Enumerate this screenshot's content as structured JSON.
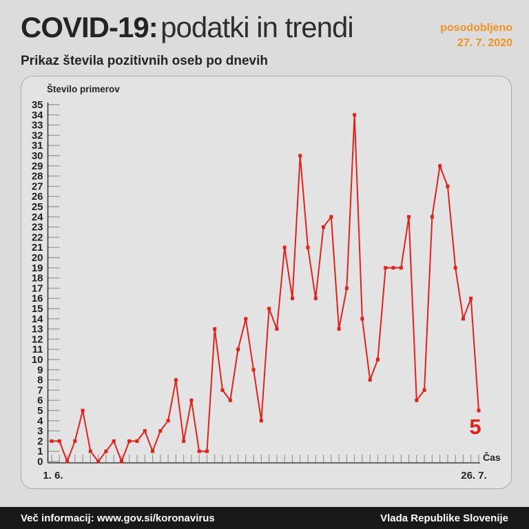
{
  "page": {
    "background": "#dcdcdc"
  },
  "header": {
    "title_bold": "COVID-19:",
    "title_regular": "podatki in trendi",
    "updated_label": "posodobljeno",
    "updated_date": "27. 7. 2020",
    "accent_color": "#f0931f",
    "subtitle": "Prikaz števila pozitivnih oseb po dnevih"
  },
  "chart_data": {
    "type": "line",
    "title": "Prikaz števila pozitivnih oseb po dnevih",
    "ylabel": "Število primerov",
    "xlabel": "Čas",
    "x_first_tick_label": "1. 6.",
    "x_last_tick_label": "26. 7.",
    "ylim": [
      0,
      35
    ],
    "y_tick_step": 1,
    "n_points": 56,
    "grid": "axis-ticks-only",
    "legend_position": "none",
    "line_color": "#e32118",
    "marker": "square",
    "last_point_label": "5",
    "series": [
      {
        "name": "Število pozitivnih oseb po dnevih",
        "values": [
          2,
          2,
          0,
          2,
          5,
          1,
          0,
          1,
          2,
          0,
          2,
          2,
          3,
          1,
          3,
          4,
          8,
          2,
          6,
          1,
          1,
          13,
          7,
          6,
          11,
          14,
          9,
          4,
          15,
          13,
          21,
          16,
          30,
          21,
          16,
          23,
          24,
          13,
          17,
          34,
          14,
          8,
          10,
          19,
          19,
          19,
          24,
          6,
          7,
          24,
          29,
          27,
          19,
          14,
          16,
          5
        ]
      }
    ]
  },
  "footer": {
    "left": "Več informacij: www.gov.si/koronavirus",
    "right": "Vlada Republike Slovenije",
    "background": "#191919"
  }
}
